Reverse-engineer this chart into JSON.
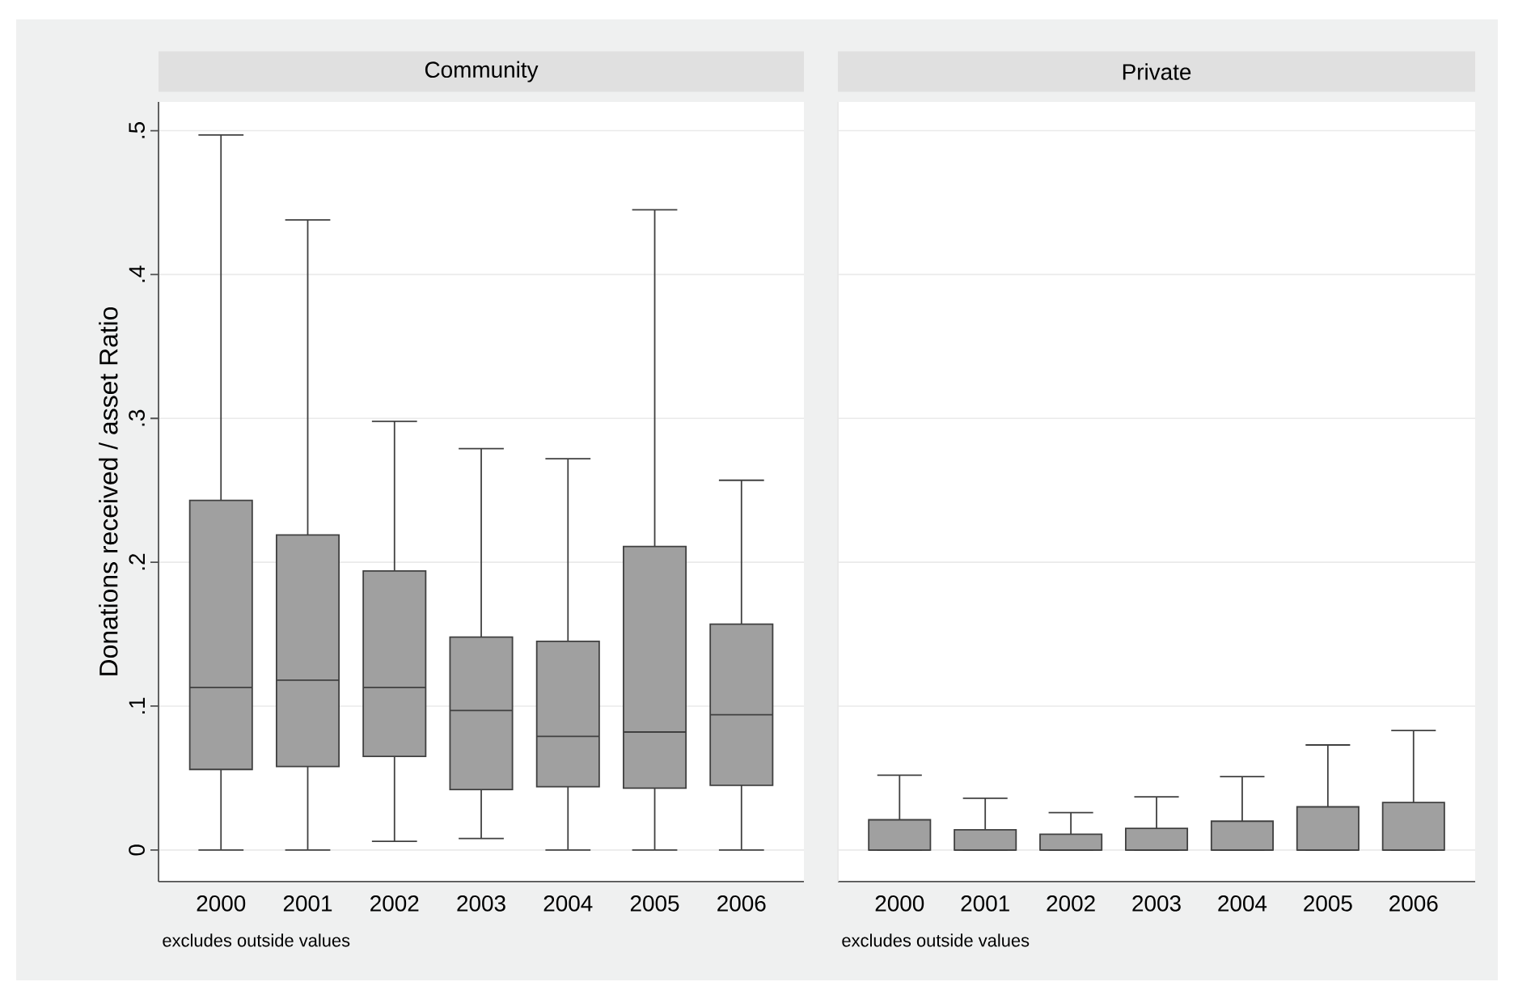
{
  "chart_data": [
    {
      "type": "box",
      "title": "Community",
      "ylabel": "Donations received / asset Ratio",
      "categories": [
        "2000",
        "2001",
        "2002",
        "2003",
        "2004",
        "2005",
        "2006"
      ],
      "series": [
        {
          "color": "#a0a0a0",
          "boxes": [
            {
              "low": 0,
              "q1": 0.056,
              "median": 0.113,
              "q3": 0.243,
              "high": 0.497
            },
            {
              "low": 0,
              "q1": 0.058,
              "median": 0.118,
              "q3": 0.219,
              "high": 0.438
            },
            {
              "low": 0.006,
              "q1": 0.065,
              "median": 0.113,
              "q3": 0.194,
              "high": 0.298
            },
            {
              "low": 0.008,
              "q1": 0.042,
              "median": 0.097,
              "q3": 0.148,
              "high": 0.279
            },
            {
              "low": 0,
              "q1": 0.044,
              "median": 0.079,
              "q3": 0.145,
              "high": 0.272
            },
            {
              "low": 0,
              "q1": 0.043,
              "median": 0.082,
              "q3": 0.211,
              "high": 0.445
            },
            {
              "low": 0,
              "q1": 0.045,
              "median": 0.094,
              "q3": 0.157,
              "high": 0.257
            }
          ]
        }
      ],
      "ylim": [
        -0.022,
        0.52
      ],
      "yticks": [
        0,
        {
          "value": 0.1,
          "label": ".1"
        },
        {
          "value": 0.2,
          "label": ".2"
        },
        {
          "value": 0.3,
          "label": ".3"
        },
        {
          "value": 0.4,
          "label": ".4"
        },
        {
          "value": 0.5,
          "label": ".5"
        }
      ],
      "grid": "y",
      "annotations": [
        "excludes outside values"
      ]
    },
    {
      "type": "box",
      "title": "Private",
      "categories": [
        "2000",
        "2001",
        "2002",
        "2003",
        "2004",
        "2005",
        "2006"
      ],
      "series": [
        {
          "color": "#a0a0a0",
          "boxes": [
            {
              "low": 0,
              "q1": 0,
              "median": 0,
              "q3": 0.021,
              "high": 0.052
            },
            {
              "low": 0,
              "q1": 0,
              "median": 0,
              "q3": 0.014,
              "high": 0.036
            },
            {
              "low": 0,
              "q1": 0,
              "median": 0,
              "q3": 0.011,
              "high": 0.026
            },
            {
              "low": 0,
              "q1": 0,
              "median": 0,
              "q3": 0.015,
              "high": 0.037
            },
            {
              "low": 0,
              "q1": 0,
              "median": 0,
              "q3": 0.02,
              "high": 0.051
            },
            {
              "low": 0,
              "q1": 0,
              "median": 0,
              "q3": 0.03,
              "high": 0.073
            },
            {
              "low": 0,
              "q1": 0,
              "median": 0,
              "q3": 0.033,
              "high": 0.083
            }
          ]
        }
      ],
      "ylim": [
        -0.022,
        0.52
      ],
      "yticks": [
        0,
        0.1,
        0.2,
        0.3,
        0.4,
        0.5
      ],
      "grid": "y",
      "tick_labels": "x",
      "annotations": [
        "excludes outside values"
      ]
    }
  ]
}
